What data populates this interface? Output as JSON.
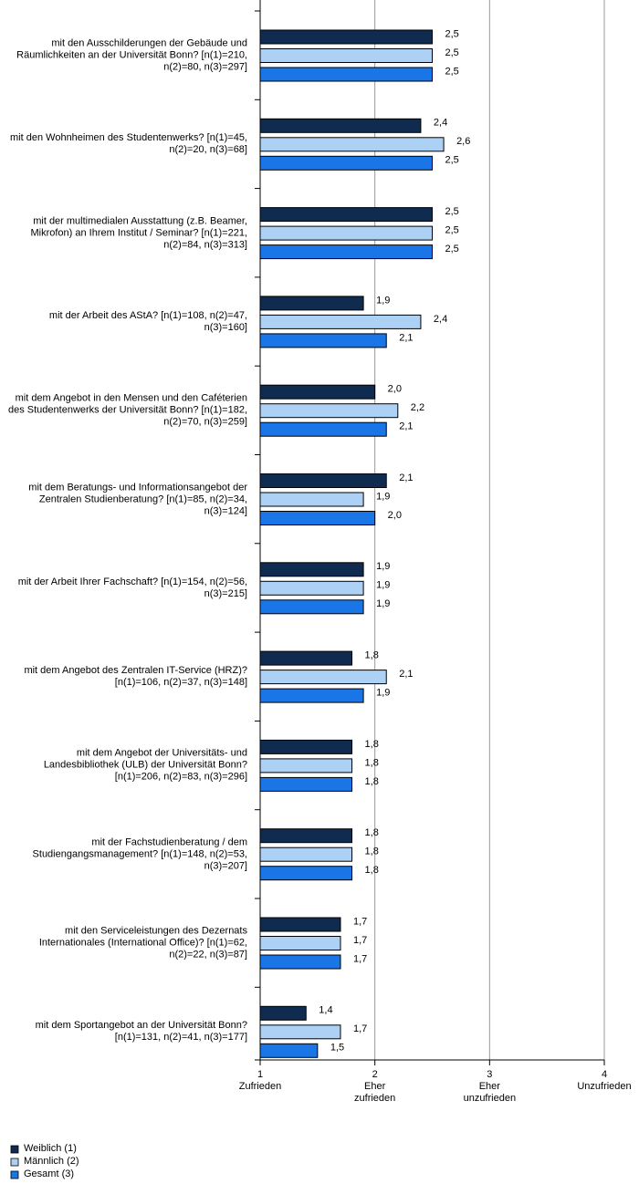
{
  "chart_data": {
    "type": "bar",
    "orientation": "horizontal",
    "categories": [
      "mit den Ausschilderungen der Gebäude und Räumlichkeiten an der Universität Bonn? [n(1)=210, n(2)=80, n(3)=297]",
      "mit den Wohnheimen des Studentenwerks? [n(1)=45, n(2)=20, n(3)=68]",
      "mit der multimedialen Ausstattung (z.B. Beamer, Mikrofon) an Ihrem Institut / Seminar? [n(1)=221, n(2)=84, n(3)=313]",
      "mit der Arbeit des AStA? [n(1)=108, n(2)=47, n(3)=160]",
      "mit dem Angebot in den Mensen und den Caféterien des Studentenwerks der Universität Bonn? [n(1)=182, n(2)=70, n(3)=259]",
      "mit dem Beratungs- und Informationsangebot der Zentralen Studienberatung? [n(1)=85, n(2)=34, n(3)=124]",
      "mit der Arbeit Ihrer Fachschaft? [n(1)=154, n(2)=56, n(3)=215]",
      "mit dem Angebot des Zentralen IT-Service (HRZ)? [n(1)=106, n(2)=37, n(3)=148]",
      "mit dem Angebot der Universitäts- und Landesbibliothek (ULB) der Universität Bonn? [n(1)=206, n(2)=83, n(3)=296]",
      "mit der Fachstudienberatung / dem Studiengangsmanagement? [n(1)=148, n(2)=53, n(3)=207]",
      "mit den Serviceleistungen des Dezernats Internationales (International Office)? [n(1)=62, n(2)=22, n(3)=87]",
      "mit dem Sportangebot an der Universität Bonn? [n(1)=131, n(2)=41, n(3)=177]"
    ],
    "series": [
      {
        "name": "Weiblich (1)",
        "color": "#0f2b4f",
        "values": [
          2.5,
          2.4,
          2.5,
          1.9,
          2.0,
          2.1,
          1.9,
          1.8,
          1.8,
          1.8,
          1.7,
          1.4
        ],
        "value_labels": [
          "2,5",
          "2,4",
          "2,5",
          "1,9",
          "2,0",
          "2,1",
          "1,9",
          "1,8",
          "1,8",
          "1,8",
          "1,7",
          "1,4"
        ]
      },
      {
        "name": "Männlich (2)",
        "color": "#add0f5",
        "values": [
          2.5,
          2.6,
          2.5,
          2.4,
          2.2,
          1.9,
          1.9,
          2.1,
          1.8,
          1.8,
          1.7,
          1.7
        ],
        "value_labels": [
          "2,5",
          "2,6",
          "2,5",
          "2,4",
          "2,2",
          "1,9",
          "1,9",
          "2,1",
          "1,8",
          "1,8",
          "1,7",
          "1,7"
        ]
      },
      {
        "name": "Gesamt (3)",
        "color": "#1a76e6",
        "values": [
          2.5,
          2.5,
          2.5,
          2.1,
          2.1,
          2.0,
          1.9,
          1.9,
          1.8,
          1.8,
          1.7,
          1.5
        ],
        "value_labels": [
          "2,5",
          "2,5",
          "2,5",
          "2,1",
          "2,1",
          "2,0",
          "1,9",
          "1,9",
          "1,8",
          "1,8",
          "1,7",
          "1,5"
        ]
      }
    ],
    "xlim": [
      1,
      4
    ],
    "xticks": [
      1,
      2,
      3,
      4
    ],
    "xtick_names": [
      "Zufrieden",
      "Eher zufrieden",
      "Eher unzufrieden",
      "Unzufrieden"
    ],
    "grid": true,
    "legend": "bottom-left"
  }
}
